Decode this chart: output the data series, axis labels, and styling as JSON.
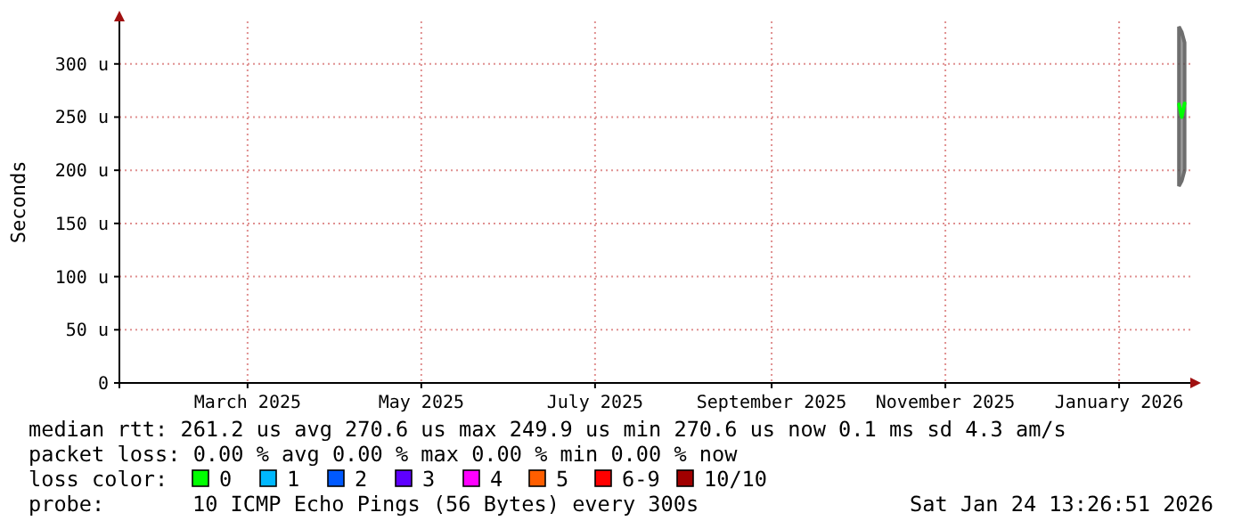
{
  "chart_data": {
    "type": "line",
    "ylabel": "Seconds",
    "xlim": [
      "2025-01-15",
      "2026-01-26"
    ],
    "xticks": [
      {
        "value": "2025-03-01",
        "label": "March 2025"
      },
      {
        "value": "2025-05-01",
        "label": "May 2025"
      },
      {
        "value": "2025-07-01",
        "label": "July 2025"
      },
      {
        "value": "2025-09-01",
        "label": "September 2025"
      },
      {
        "value": "2025-11-01",
        "label": "November 2025"
      },
      {
        "value": "2026-01-01",
        "label": "January 2026"
      }
    ],
    "ylim": [
      0,
      340
    ],
    "yticks": [
      0,
      {
        "value": 50,
        "label": "50 u"
      },
      {
        "value": 100,
        "label": "100 u"
      },
      {
        "value": 150,
        "label": "150 u"
      },
      {
        "value": 200,
        "label": "200 u"
      },
      {
        "value": 250,
        "label": "250 u"
      },
      {
        "value": 300,
        "label": "300 u"
      }
    ],
    "x": [
      "2026-01-22",
      "2026-01-23",
      "2026-01-24"
    ],
    "series": [
      {
        "color": "#00ff00",
        "values": [
          262,
          250,
          263
        ],
        "lower": [
          185,
          190,
          200
        ],
        "upper": [
          335,
          330,
          320
        ]
      }
    ],
    "grid": true,
    "marker": "none",
    "line_style": "solid",
    "annotations": [
      "median rtt:  261.2 us avg  270.6 us max  249.9 us min  270.6 us now  0.1 ms sd  4.3   am/s",
      "packet loss: 0.00 % avg  0.00 % max  0.00 % min  0.00 % now",
      "loss color:",
      "0",
      "1",
      "2",
      "3",
      "4",
      "5",
      "6-9",
      "10/10",
      "probe:",
      "10 ICMP Echo Pings (56 Bytes) every 300s",
      "Sat Jan 24 13:26:51 2026"
    ]
  }
}
